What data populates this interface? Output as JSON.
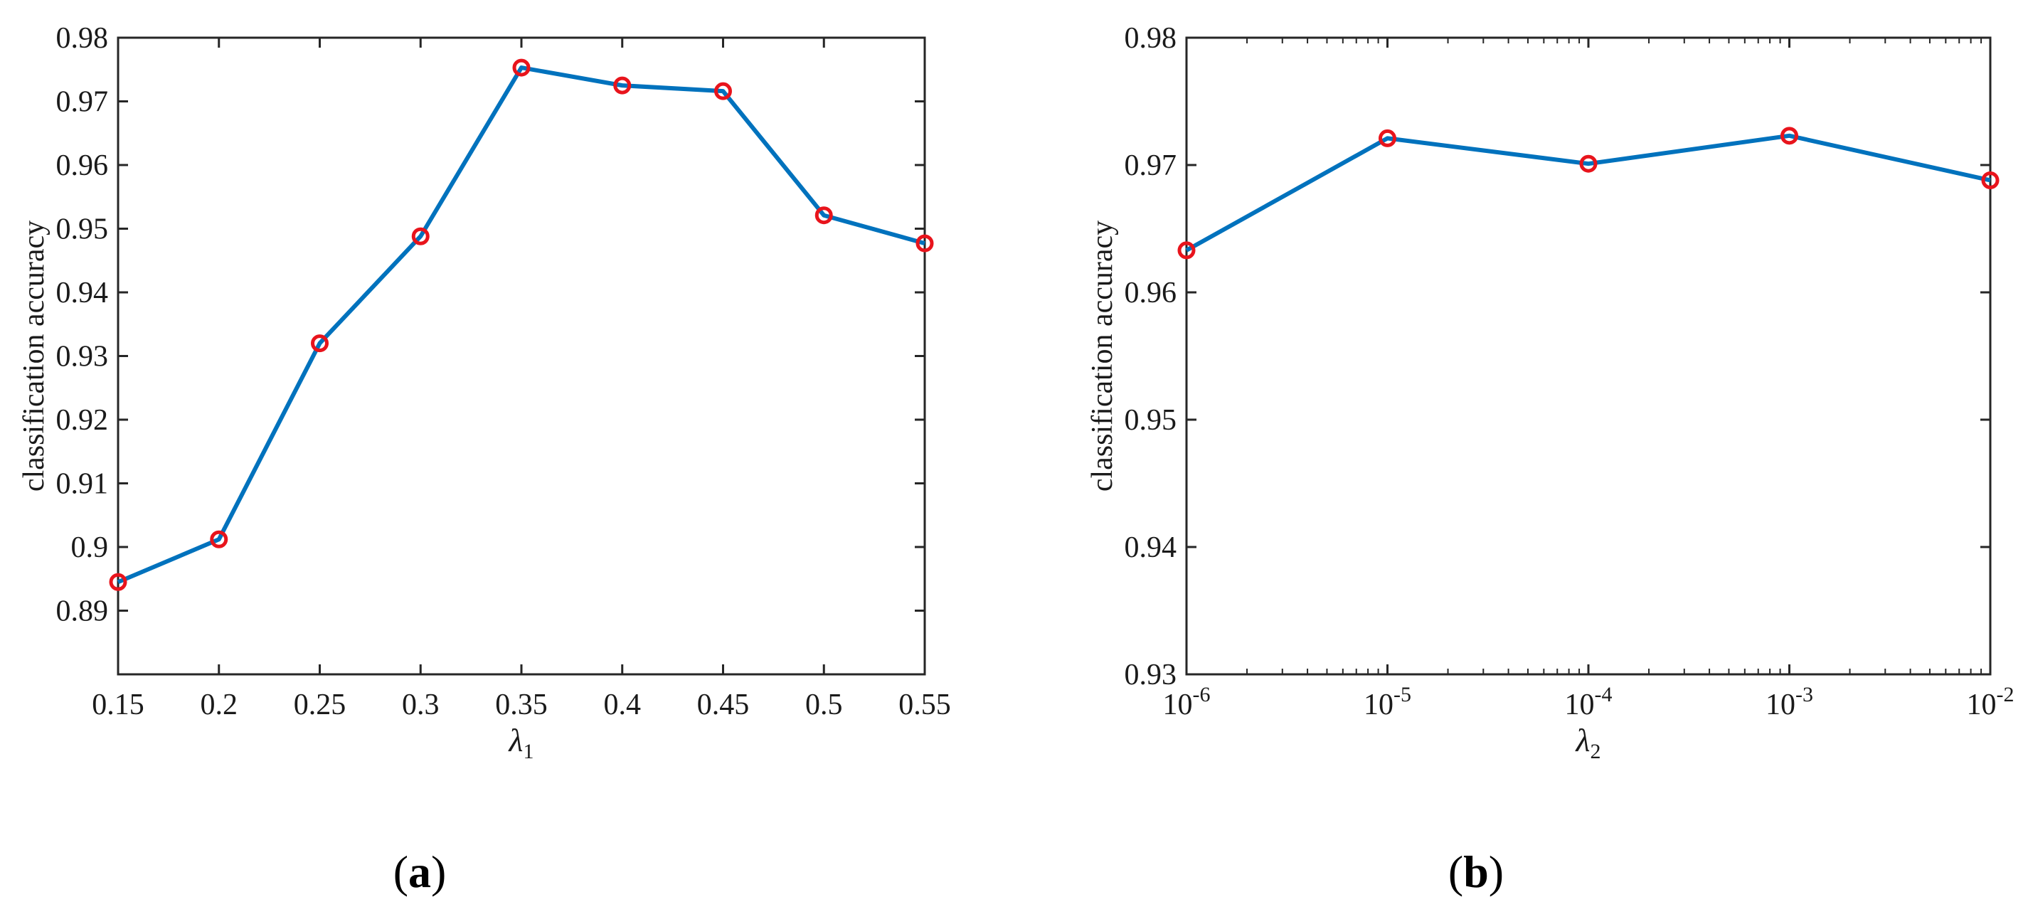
{
  "chart_data": [
    {
      "id": "a",
      "type": "line",
      "panel_label": "a",
      "x": [
        0.15,
        0.2,
        0.25,
        0.3,
        0.35,
        0.4,
        0.45,
        0.5,
        0.55
      ],
      "series": [
        {
          "name": "classification accuracy",
          "values": [
            0.8945,
            0.9012,
            0.932,
            0.9488,
            0.9753,
            0.9725,
            0.9716,
            0.9521,
            0.9477
          ]
        }
      ],
      "xscale": "linear",
      "xlim": [
        0.15,
        0.55
      ],
      "ylim": [
        0.88,
        0.98
      ],
      "xticks": [
        0.15,
        0.2,
        0.25,
        0.3,
        0.35,
        0.4,
        0.45,
        0.5,
        0.55
      ],
      "xtick_labels": [
        "0.15",
        "0.2",
        "0.25",
        "0.3",
        "0.35",
        "0.4",
        "0.45",
        "0.5",
        "0.55"
      ],
      "yticks": [
        0.89,
        0.9,
        0.91,
        0.92,
        0.93,
        0.94,
        0.95,
        0.96,
        0.97,
        0.98
      ],
      "ytick_labels": [
        "0.89",
        "0.9",
        "0.91",
        "0.92",
        "0.93",
        "0.94",
        "0.95",
        "0.96",
        "0.97",
        "0.98"
      ],
      "xlabel_symbol": "λ",
      "xlabel_subscript": "1",
      "ylabel": "classification accuracy",
      "line_color": "#0072bd",
      "marker_color": "#e8141c",
      "grid": false
    },
    {
      "id": "b",
      "type": "line",
      "panel_label": "b",
      "x": [
        1e-06,
        1e-05,
        0.0001,
        0.001,
        0.01
      ],
      "series": [
        {
          "name": "classification accuracy",
          "values": [
            0.9633,
            0.9721,
            0.9701,
            0.9723,
            0.9688
          ]
        }
      ],
      "xscale": "log",
      "xlim": [
        1e-06,
        0.01
      ],
      "ylim": [
        0.93,
        0.98
      ],
      "xticks": [
        1e-06,
        1e-05,
        0.0001,
        0.001,
        0.01
      ],
      "xtick_labels": [
        {
          "base": "10",
          "exp": "-6"
        },
        {
          "base": "10",
          "exp": "-5"
        },
        {
          "base": "10",
          "exp": "-4"
        },
        {
          "base": "10",
          "exp": "-3"
        },
        {
          "base": "10",
          "exp": "-2"
        }
      ],
      "yticks": [
        0.93,
        0.94,
        0.95,
        0.96,
        0.97,
        0.98
      ],
      "ytick_labels": [
        "0.93",
        "0.94",
        "0.95",
        "0.96",
        "0.97",
        "0.98"
      ],
      "xlabel_symbol": "λ",
      "xlabel_subscript": "2",
      "ylabel": "classification accuracy",
      "line_color": "#0072bd",
      "marker_color": "#e8141c",
      "grid": false
    }
  ]
}
